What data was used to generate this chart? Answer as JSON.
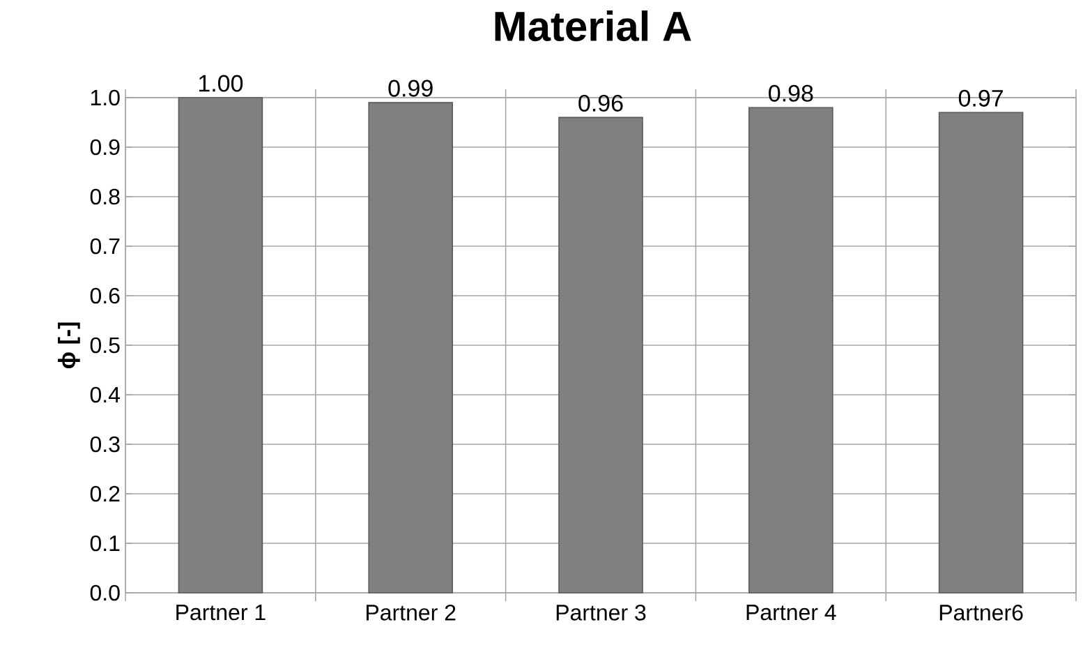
{
  "chart_data": {
    "type": "bar",
    "title": "Material A",
    "ylabel": "ϕ [-]",
    "categories": [
      "Partner 1",
      "Partner 2",
      "Partner 3",
      "Partner 4",
      "Partner6"
    ],
    "values": [
      1.0,
      0.99,
      0.96,
      0.98,
      0.97
    ],
    "value_labels": [
      "1.00",
      "0.99",
      "0.96",
      "0.98",
      "0.97"
    ],
    "color": "#808080",
    "ylim": [
      0,
      1
    ],
    "yticks": [
      {
        "value": 0,
        "label": "0.0"
      },
      {
        "value": 0.1,
        "label": "0.1"
      },
      {
        "value": 0.2,
        "label": "0.2"
      },
      {
        "value": 0.3,
        "label": "0.3"
      },
      {
        "value": 0.4,
        "label": "0.4"
      },
      {
        "value": 0.5,
        "label": "0.5"
      },
      {
        "value": 0.6,
        "label": "0.6"
      },
      {
        "value": 0.7,
        "label": "0.7"
      },
      {
        "value": 0.8,
        "label": "0.8"
      },
      {
        "value": 0.9,
        "label": "0.9"
      },
      {
        "value": 1,
        "label": "1.0"
      }
    ],
    "grid": true
  }
}
